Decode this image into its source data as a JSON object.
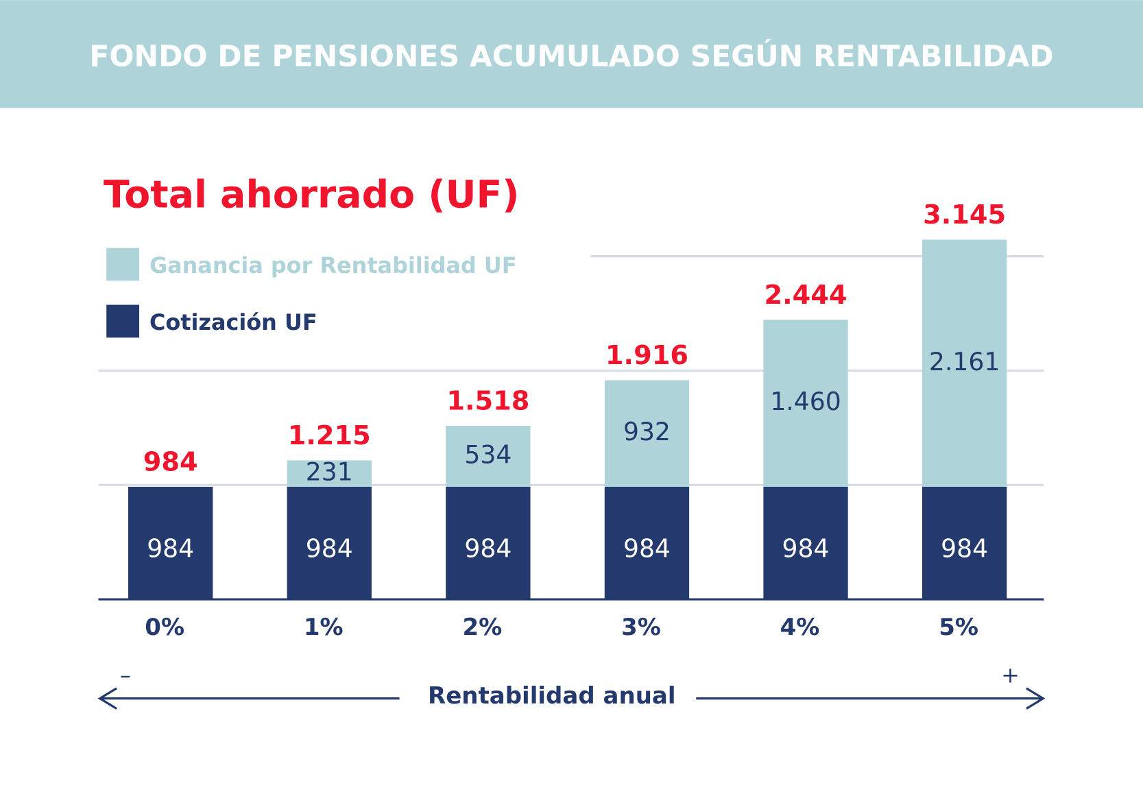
{
  "header": {
    "title": "FONDO DE PENSIONES ACUMULADO SEGÚN RENTABILIDAD"
  },
  "chart_data": {
    "type": "bar",
    "stacked": true,
    "title": "Total ahorrado (UF)",
    "x_label": "Rentabilidad anual",
    "x_axis_ends": [
      "–",
      "+"
    ],
    "categories": [
      "0%",
      "1%",
      "2%",
      "3%",
      "4%",
      "5%"
    ],
    "series": [
      {
        "name": "Cotización UF",
        "color": "#243a6e",
        "label_color": "#ffffff",
        "values": [
          984,
          984,
          984,
          984,
          984,
          984
        ]
      },
      {
        "name": "Ganancia por Rentabilidad UF",
        "color": "#aed3d8",
        "label_color": "#243a6e",
        "values": [
          null,
          231,
          534,
          932,
          1460,
          2161
        ],
        "value_labels": [
          null,
          "231",
          "534",
          "932",
          "1.460",
          "2.161"
        ]
      }
    ],
    "totals": {
      "color": "#f0142d",
      "values": [
        984,
        1215,
        1518,
        1916,
        2444,
        3145
      ],
      "value_labels": [
        "984",
        "1.215",
        "1.518",
        "1.916",
        "2.444",
        "3.145"
      ]
    },
    "ylim": [
      0,
      3500
    ],
    "yticks": [
      1000,
      2000,
      3000
    ],
    "grid": true
  }
}
